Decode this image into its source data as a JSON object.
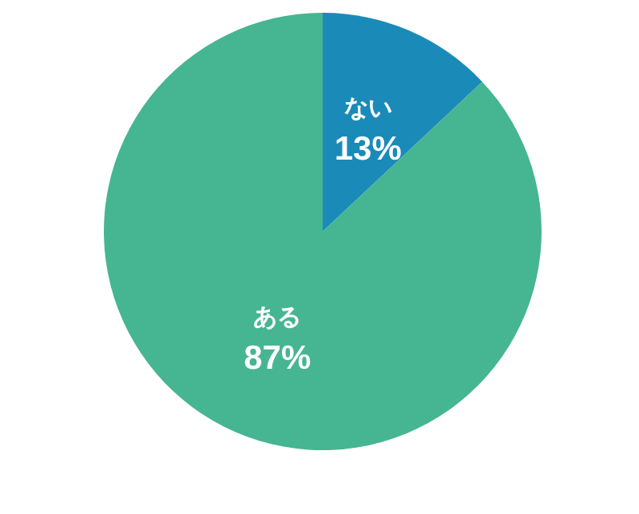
{
  "chart_data": {
    "type": "pie",
    "categories": [
      "ない",
      "ある"
    ],
    "values": [
      13,
      87
    ],
    "value_labels": [
      "13%",
      "87%"
    ],
    "colors": [
      "#1a8bb8",
      "#46b592"
    ]
  }
}
